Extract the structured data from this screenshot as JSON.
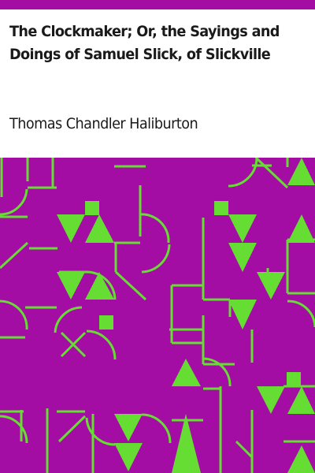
{
  "book": {
    "title_line1": "The Clockmaker; Or, the Sayings and",
    "title_line2": "Doings of Samuel Slick, of Slickville",
    "author": "Thomas Chandler Haliburton"
  },
  "colors": {
    "accent": "#a30da3",
    "pattern_background": "#a30da3",
    "pattern_foreground": "#66dd33",
    "text": "#1a1a1a",
    "header_background": "#ffffff"
  },
  "cover": {
    "icon": "geometric-maze-pattern"
  }
}
